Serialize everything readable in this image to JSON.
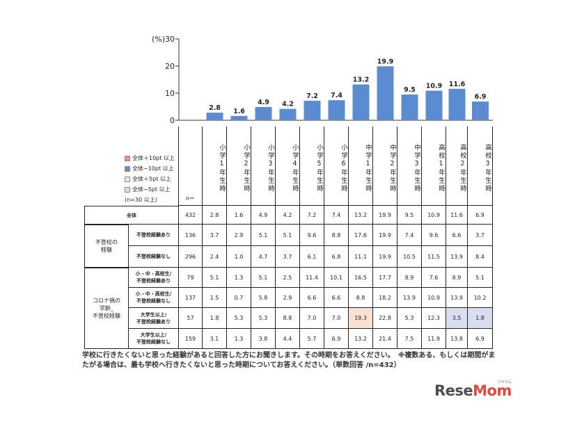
{
  "chart_data": {
    "type": "bar",
    "ylabel": "(%)",
    "ylim": [
      0,
      30
    ],
    "yticks": [
      "30",
      "20",
      "10",
      "0"
    ],
    "categories": [
      "小学1年生時",
      "小学2年生時",
      "小学3年生時",
      "小学4年生時",
      "小学5年生時",
      "小学6年生時",
      "中学1年生時",
      "中学2年生時",
      "中学3年生時",
      "高校1年生時",
      "高校2年生時",
      "高校3年生時"
    ],
    "values": [
      2.8,
      1.6,
      4.9,
      4.2,
      7.2,
      7.4,
      13.2,
      19.9,
      9.5,
      10.9,
      11.6,
      6.9
    ],
    "value_labels": [
      "2.8",
      "1.6",
      "4.9",
      "4.2",
      "7.2",
      "7.4",
      "13.2",
      "19.9",
      "9.5",
      "10.9",
      "11.6",
      "6.9"
    ],
    "bar_color": "#5b8bd0"
  },
  "legend": [
    {
      "label": "全体＋10pt 以上",
      "color": "#f0937a"
    },
    {
      "label": "全体−10pt 以上",
      "color": "#6b8fc9"
    },
    {
      "label": "全体＋5pt 以上",
      "color": "#fbe1d2"
    },
    {
      "label": "全体−5pt 以上",
      "color": "#d9ddf0"
    },
    {
      "label": "(n=30 以上)",
      "color": ""
    }
  ],
  "table": {
    "n_header": "n＝",
    "groups": [
      {
        "label": "",
        "rows": [
          0
        ]
      },
      {
        "label": "不登校の\n経験",
        "rows": [
          1,
          2
        ]
      },
      {
        "label": "コロナ禍の\n学齢_\n不登校経験",
        "rows": [
          3,
          4,
          5,
          6
        ]
      }
    ],
    "rows": [
      {
        "label": "全体",
        "n": "432",
        "cells": [
          "2.8",
          "1.6",
          "4.9",
          "4.2",
          "7.2",
          "7.4",
          "13.2",
          "19.9",
          "9.5",
          "10.9",
          "11.6",
          "6.9"
        ]
      },
      {
        "label": "不登校経験あり",
        "n": "136",
        "cells": [
          "3.7",
          "2.9",
          "5.1",
          "5.1",
          "9.6",
          "8.8",
          "17.6",
          "19.9",
          "7.4",
          "9.6",
          "6.6",
          "3.7"
        ]
      },
      {
        "label": "不登校経験なし",
        "n": "296",
        "cells": [
          "2.4",
          "1.0",
          "4.7",
          "3.7",
          "6.1",
          "6.8",
          "11.1",
          "19.9",
          "10.5",
          "11.5",
          "13.9",
          "8.4"
        ]
      },
      {
        "label": "小・中・高校生/\n不登校経験あり",
        "n": "79",
        "cells": [
          "5.1",
          "1.3",
          "5.1",
          "2.5",
          "11.4",
          "10.1",
          "16.5",
          "17.7",
          "8.9",
          "7.6",
          "8.9",
          "5.1"
        ]
      },
      {
        "label": "小・中・高校生/\n不登校経験なし",
        "n": "137",
        "cells": [
          "1.5",
          "0.7",
          "5.8",
          "2.9",
          "6.6",
          "6.6",
          "8.8",
          "18.2",
          "13.9",
          "10.9",
          "13.9",
          "10.2"
        ]
      },
      {
        "label": "大学生以上/\n不登校経験あり",
        "n": "57",
        "cells": [
          "1.8",
          "5.3",
          "5.3",
          "8.8",
          "7.0",
          "7.0",
          "19.3",
          "22.8",
          "5.3",
          "12.3",
          "3.5",
          "1.8"
        ]
      },
      {
        "label": "大学生以上/\n不登校経験なし",
        "n": "159",
        "cells": [
          "3.1",
          "1.3",
          "3.8",
          "4.4",
          "5.7",
          "6.9",
          "13.2",
          "21.4",
          "7.5",
          "11.9",
          "13.8",
          "6.9"
        ]
      }
    ],
    "highlights": [
      {
        "row": 5,
        "col": 6,
        "color": "#fbe1d2"
      },
      {
        "row": 5,
        "col": 10,
        "color": "#d9ddf0"
      },
      {
        "row": 5,
        "col": 11,
        "color": "#d9ddf0"
      }
    ]
  },
  "note": "学校に行きたくないと思った経験があると回答した方にお聞きします。その時期をお答えください。　※複数ある、もしくは期間がまたがる場合は、最も学校へ行きたくないと思った時期についてお答えください。（単数回答 /n=432）",
  "logo": {
    "part1": "Rese",
    "part2": "Mom",
    "small": "リセマム"
  }
}
